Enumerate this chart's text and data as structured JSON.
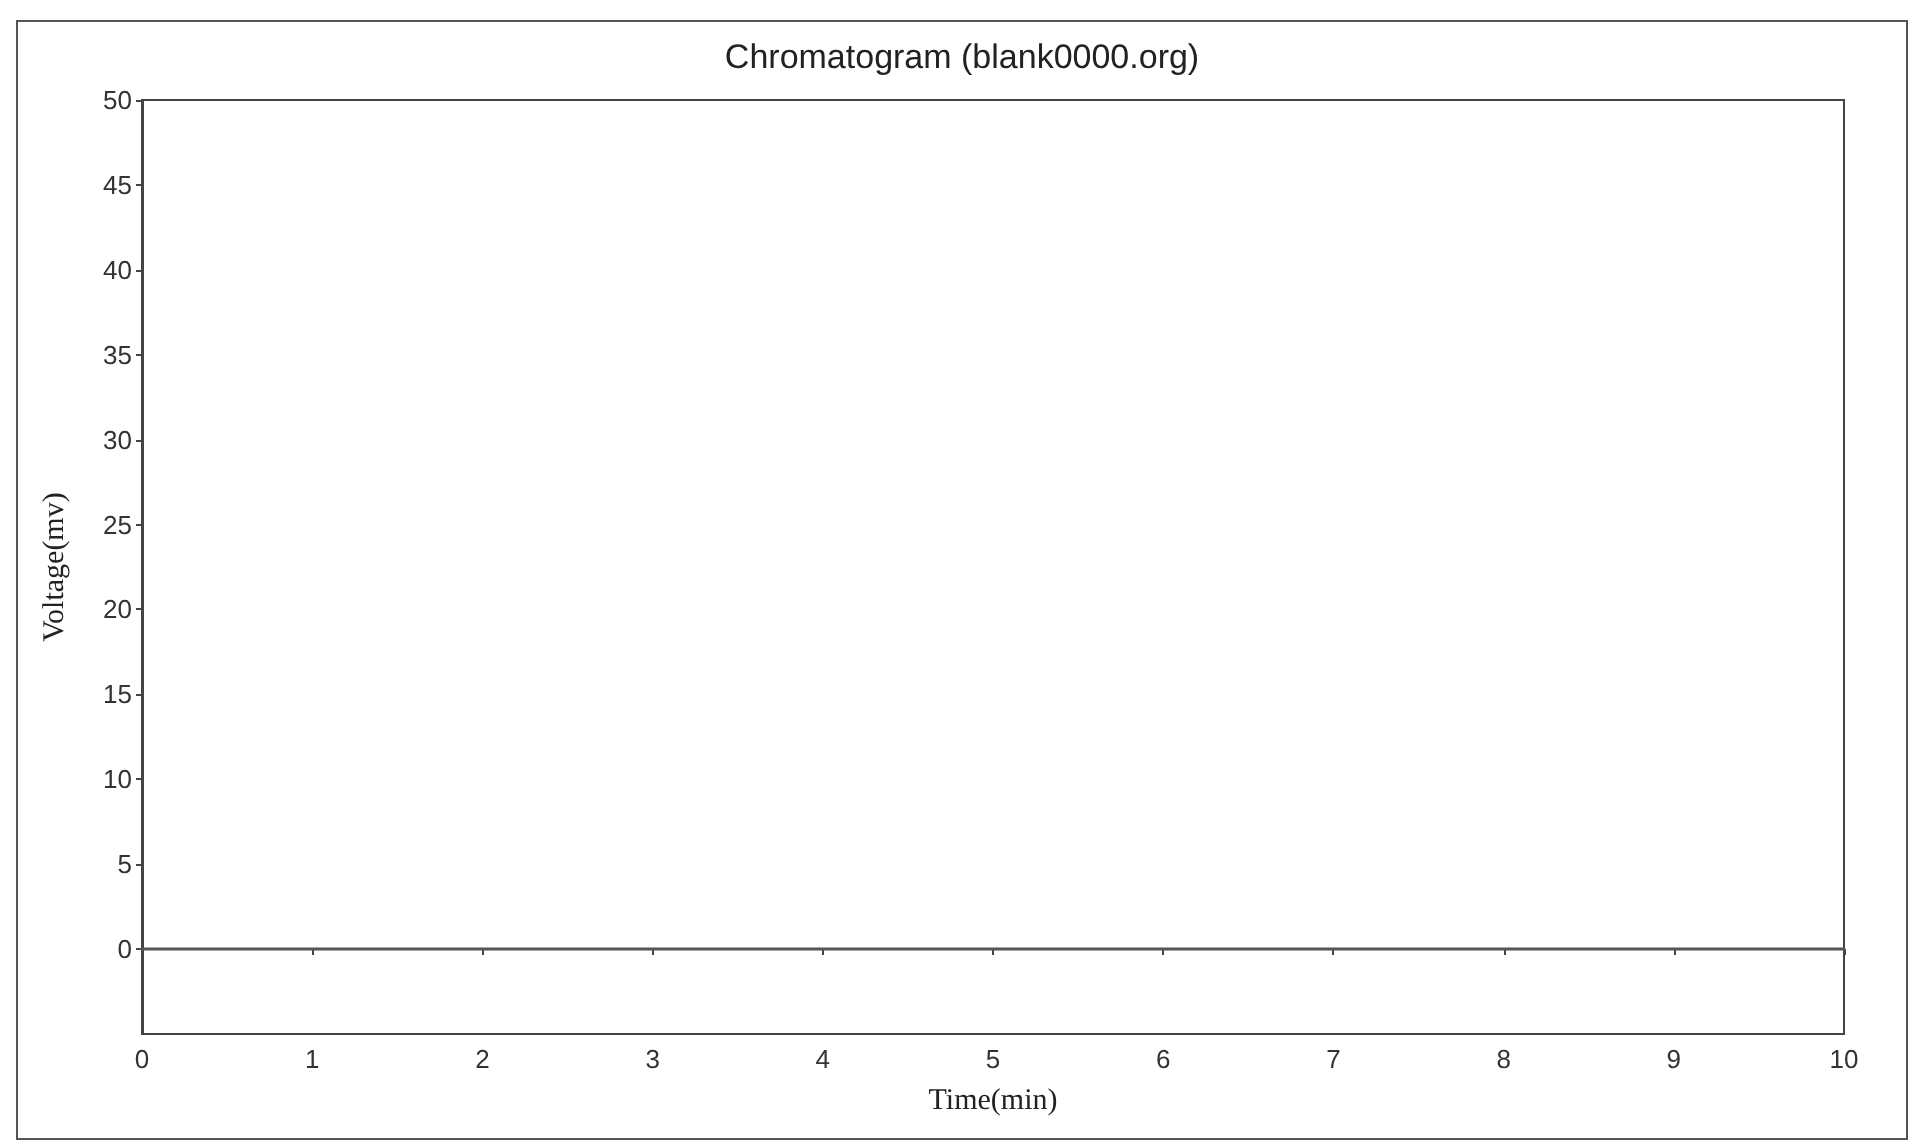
{
  "chart_data": {
    "type": "line",
    "title": "Chromatogram (blank0000.org)",
    "xlabel": "Time(min)",
    "ylabel": "Voltage(mv)",
    "x": [
      0,
      10
    ],
    "series": [
      {
        "color": "#555555",
        "values": [
          0,
          0
        ]
      }
    ],
    "xlim": [
      0,
      10
    ],
    "xticks": [
      0,
      1,
      2,
      3,
      4,
      5,
      6,
      7,
      8,
      9,
      10
    ],
    "ylim": [
      -5,
      50
    ],
    "yticks": [
      0,
      5,
      10,
      15,
      20,
      25,
      30,
      35,
      40,
      45,
      50
    ],
    "grid": false,
    "marker": "none",
    "line_style": "solid"
  }
}
